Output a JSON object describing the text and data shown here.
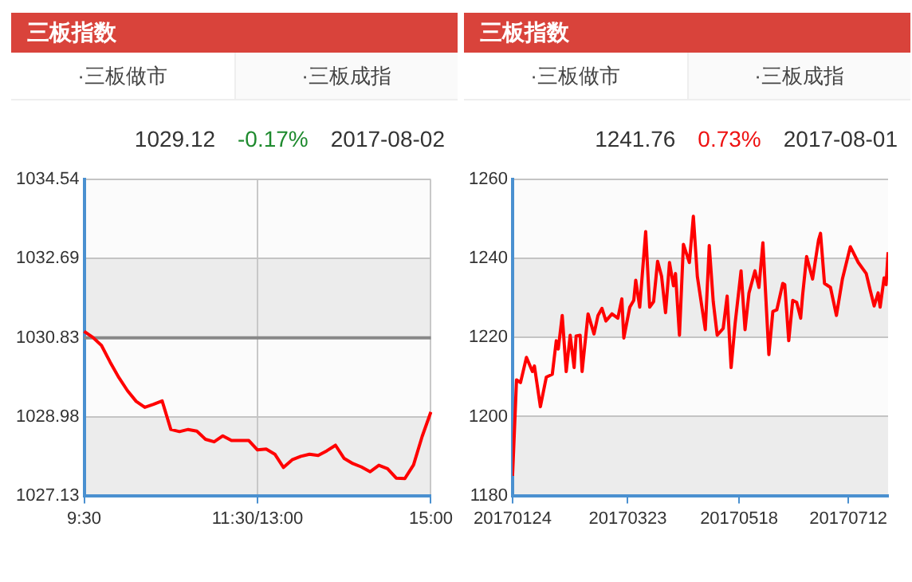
{
  "chart_data": [
    {
      "type": "line",
      "title": "三板指数",
      "annotations": [
        "·三板做市",
        "·三板成指",
        "1029.12",
        "-0.17%",
        "2017-08-02"
      ],
      "categories": [
        "9:30",
        null,
        null,
        null,
        null,
        null,
        null,
        null,
        null,
        null,
        null,
        null,
        null,
        null,
        null,
        null,
        null,
        null,
        null,
        null,
        "11:30/13:00",
        null,
        null,
        null,
        null,
        null,
        null,
        null,
        null,
        null,
        null,
        null,
        null,
        null,
        null,
        null,
        null,
        null,
        null,
        null,
        "15:00"
      ],
      "series": [
        {
          "color": "#ff0000",
          "values": [
            1030.98,
            1030.84,
            1030.65,
            1030.26,
            1029.9,
            1029.59,
            1029.34,
            1029.2,
            1029.27,
            1029.35,
            1028.68,
            1028.63,
            1028.68,
            1028.64,
            1028.45,
            1028.39,
            1028.53,
            1028.42,
            1028.42,
            1028.42,
            1028.2,
            1028.22,
            1028.1,
            1027.79,
            1027.97,
            1028.05,
            1028.1,
            1028.07,
            1028.18,
            1028.31,
            1028,
            1027.88,
            1027.8,
            1027.69,
            1027.84,
            1027.76,
            1027.54,
            1027.53,
            1027.85,
            1028.52,
            1029.09
          ]
        }
      ],
      "ylim": [
        1027.13,
        1034.54
      ],
      "yticks": [
        1027.13,
        1028.98,
        1030.83,
        1032.69,
        1034.54
      ],
      "ref_lines": [
        {
          "axis": "y",
          "value": 1030.83,
          "color": "#888888"
        }
      ],
      "grid": true
    },
    {
      "type": "line",
      "title": "三板指数",
      "annotations": [
        "·三板做市",
        "·三板成指",
        "1241.76",
        "0.73%",
        "2017-08-01"
      ],
      "x": [
        "2017-01-24",
        "2017-01-26",
        "2017-01-28",
        "2017-01-31",
        "2017-02-03",
        "2017-02-04",
        "2017-02-07",
        "2017-02-10",
        "2017-02-13",
        "2017-02-15",
        "2017-02-16",
        "2017-02-18",
        "2017-02-20",
        "2017-02-22",
        "2017-02-24",
        "2017-02-25",
        "2017-02-27",
        "2017-02-28",
        "2017-03-03",
        "2017-03-06",
        "2017-03-08",
        "2017-03-10",
        "2017-03-12",
        "2017-03-15",
        "2017-03-18",
        "2017-03-20",
        "2017-03-21",
        "2017-03-24",
        "2017-03-26",
        "2017-03-27",
        "2017-03-29",
        "2017-04-01",
        "2017-04-03",
        "2017-04-05",
        "2017-04-07",
        "2017-04-09",
        "2017-04-11",
        "2017-04-13",
        "2017-04-15",
        "2017-04-16",
        "2017-04-18",
        "2017-04-20",
        "2017-04-23",
        "2017-04-25",
        "2017-04-27",
        "2017-05-01",
        "2017-05-03",
        "2017-05-05",
        "2017-05-07",
        "2017-05-10",
        "2017-05-12",
        "2017-05-14",
        "2017-05-16",
        "2017-05-19",
        "2017-05-21",
        "2017-05-23",
        "2017-05-26",
        "2017-05-28",
        "2017-05-30",
        "2017-06-02",
        "2017-06-04",
        "2017-06-06",
        "2017-06-09",
        "2017-06-10",
        "2017-06-12",
        "2017-06-14",
        "2017-06-16",
        "2017-06-18",
        "2017-06-19",
        "2017-06-21",
        "2017-06-24",
        "2017-06-27",
        "2017-06-28",
        "2017-06-30",
        "2017-07-03",
        "2017-07-06",
        "2017-07-09",
        "2017-07-13",
        "2017-07-17",
        "2017-07-21",
        "2017-07-23",
        "2017-07-25",
        "2017-07-27",
        "2017-07-28",
        "2017-07-30",
        "2017-07-31",
        "2017-08-01"
      ],
      "series": [
        {
          "color": "#ff0000",
          "values": [
            1185,
            1209.3,
            1208.6,
            1215,
            1211.4,
            1212.8,
            1202.5,
            1210,
            1210.7,
            1219.2,
            1217.1,
            1225.6,
            1211.4,
            1220.6,
            1212.4,
            1220.4,
            1220.6,
            1211.4,
            1226,
            1220.9,
            1225.6,
            1227.4,
            1224.2,
            1226,
            1224.9,
            1229.8,
            1219.9,
            1227.7,
            1229.4,
            1234.5,
            1227.7,
            1246.8,
            1227.7,
            1229.1,
            1239.3,
            1235.5,
            1226.3,
            1239,
            1233.1,
            1236.2,
            1220.6,
            1243.6,
            1239,
            1250.7,
            1235.5,
            1222,
            1243.3,
            1229.1,
            1220.6,
            1222.3,
            1230.5,
            1212.4,
            1223.5,
            1236.9,
            1222,
            1231.3,
            1236.9,
            1232.7,
            1244,
            1215.7,
            1226.6,
            1227,
            1233.7,
            1233.4,
            1219.2,
            1229.4,
            1228.9,
            1224.9,
            1230.8,
            1240.5,
            1234.8,
            1244.7,
            1246.4,
            1233.7,
            1232.7,
            1225.6,
            1234.8,
            1243,
            1239,
            1236.2,
            1232,
            1228,
            1231.3,
            1227.7,
            1235.1,
            1233.4,
            1241.6
          ]
        }
      ],
      "xlim": [
        "2017-01-24",
        "2017-08-01"
      ],
      "xticks": [
        {
          "value": "2017-01-24",
          "label": "20170124"
        },
        {
          "value": "2017-03-23",
          "label": "20170323"
        },
        {
          "value": "2017-05-18",
          "label": "20170518"
        },
        {
          "value": "2017-07-12",
          "label": "20170712"
        }
      ],
      "ylim": [
        1180,
        1260
      ],
      "yticks": [
        1180,
        1200,
        1220,
        1240,
        1260
      ],
      "grid": "y"
    }
  ]
}
